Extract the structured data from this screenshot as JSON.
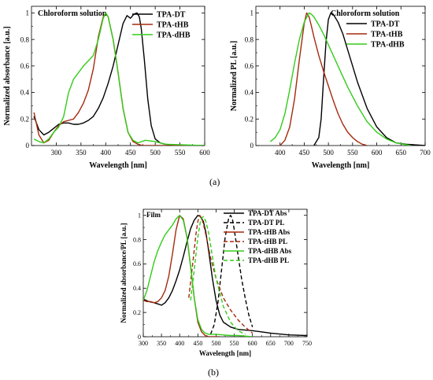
{
  "figure": {
    "caption_a": "(a)",
    "caption_b": "(b)"
  },
  "chart_data": [
    {
      "type": "line",
      "panel": "a-left",
      "title": "Chloroform solution",
      "xlabel": "Wavelength [nm]",
      "ylabel": "Normalized absorbance [a.u.]",
      "xlim": [
        250,
        600
      ],
      "ylim": [
        0,
        1.05
      ],
      "xticks": [
        300,
        350,
        400,
        450,
        500,
        550,
        600
      ],
      "yticks": [
        0.0,
        0.2,
        0.4,
        0.6,
        0.8,
        1.0
      ],
      "grid": false,
      "legend_position": "top-right",
      "series": [
        {
          "name": "TPA-DT",
          "color": "#000000",
          "dash": "solid",
          "x": [
            255,
            265,
            275,
            285,
            295,
            305,
            315,
            325,
            335,
            345,
            355,
            365,
            375,
            385,
            395,
            405,
            415,
            425,
            435,
            443,
            450,
            457,
            463,
            468,
            472,
            478,
            485,
            492,
            500,
            510,
            520,
            540,
            600
          ],
          "y": [
            0.22,
            0.12,
            0.08,
            0.1,
            0.13,
            0.16,
            0.17,
            0.17,
            0.16,
            0.16,
            0.17,
            0.19,
            0.22,
            0.28,
            0.36,
            0.47,
            0.6,
            0.76,
            0.92,
            0.98,
            0.96,
            0.99,
            1.0,
            0.97,
            0.88,
            0.65,
            0.35,
            0.15,
            0.05,
            0.02,
            0.01,
            0.0,
            0.0
          ]
        },
        {
          "name": "TPA-tHB",
          "color": "#a52a0f",
          "dash": "solid",
          "x": [
            255,
            265,
            275,
            285,
            295,
            305,
            315,
            325,
            335,
            345,
            355,
            365,
            375,
            385,
            395,
            400,
            405,
            415,
            425,
            435,
            445,
            455,
            465,
            475,
            490,
            520,
            600
          ],
          "y": [
            0.25,
            0.08,
            0.02,
            0.04,
            0.1,
            0.15,
            0.18,
            0.19,
            0.2,
            0.25,
            0.32,
            0.42,
            0.58,
            0.82,
            0.97,
            1.0,
            0.97,
            0.8,
            0.55,
            0.28,
            0.1,
            0.03,
            0.01,
            0.0,
            0.0,
            0.0,
            0.0
          ]
        },
        {
          "name": "TPA-dHB",
          "color": "#33cc1a",
          "dash": "solid",
          "x": [
            255,
            265,
            275,
            285,
            295,
            305,
            315,
            325,
            335,
            345,
            355,
            365,
            375,
            385,
            395,
            400,
            405,
            415,
            425,
            435,
            445,
            455,
            465,
            480,
            500,
            520,
            600
          ],
          "y": [
            0.05,
            0.03,
            0.02,
            0.05,
            0.1,
            0.14,
            0.22,
            0.4,
            0.5,
            0.55,
            0.6,
            0.64,
            0.68,
            0.8,
            0.96,
            1.0,
            0.97,
            0.8,
            0.55,
            0.28,
            0.1,
            0.04,
            0.02,
            0.04,
            0.03,
            0.01,
            0.0
          ]
        }
      ]
    },
    {
      "type": "line",
      "panel": "a-right",
      "title": "Chloroform solution",
      "xlabel": "Wavelength [nm]",
      "ylabel": "Normalized PL [a.u.]",
      "xlim": [
        350,
        700
      ],
      "ylim": [
        0,
        1.05
      ],
      "xticks": [
        400,
        450,
        500,
        550,
        600,
        650,
        700
      ],
      "yticks": [
        0.0,
        0.2,
        0.4,
        0.6,
        0.8,
        1.0
      ],
      "grid": false,
      "legend_position": "top-right",
      "series": [
        {
          "name": "TPA-DT",
          "color": "#000000",
          "dash": "solid",
          "x": [
            470,
            480,
            485,
            490,
            495,
            500,
            505,
            510,
            520,
            530,
            540,
            550,
            560,
            580,
            600,
            620,
            640,
            660,
            700
          ],
          "y": [
            0.0,
            0.06,
            0.2,
            0.5,
            0.78,
            0.95,
            1.0,
            0.99,
            0.93,
            0.84,
            0.72,
            0.6,
            0.48,
            0.28,
            0.14,
            0.06,
            0.02,
            0.01,
            0.0
          ]
        },
        {
          "name": "TPA-tHB",
          "color": "#a52a0f",
          "dash": "solid",
          "x": [
            400,
            410,
            420,
            430,
            440,
            450,
            455,
            460,
            465,
            470,
            480,
            490,
            500,
            510,
            520,
            530,
            540,
            550,
            560,
            570,
            580
          ],
          "y": [
            0.0,
            0.04,
            0.14,
            0.35,
            0.65,
            0.92,
            1.0,
            0.97,
            0.9,
            0.82,
            0.68,
            0.56,
            0.45,
            0.34,
            0.24,
            0.16,
            0.1,
            0.06,
            0.03,
            0.01,
            0.0
          ]
        },
        {
          "name": "TPA-dHB",
          "color": "#33cc1a",
          "dash": "solid",
          "x": [
            380,
            390,
            400,
            410,
            420,
            430,
            440,
            450,
            460,
            465,
            470,
            480,
            490,
            500,
            520,
            540,
            560,
            580,
            600,
            620,
            640,
            670
          ],
          "y": [
            0.03,
            0.06,
            0.12,
            0.24,
            0.42,
            0.62,
            0.8,
            0.93,
            1.0,
            0.99,
            0.97,
            0.91,
            0.84,
            0.76,
            0.6,
            0.44,
            0.3,
            0.18,
            0.1,
            0.05,
            0.02,
            0.0
          ]
        }
      ]
    },
    {
      "type": "line",
      "panel": "b",
      "title": "Film",
      "xlabel": "Wavelength [nm]",
      "ylabel": "Normalized absorbance/PL [a.u.]",
      "xlim": [
        300,
        750
      ],
      "ylim": [
        0,
        1.05
      ],
      "xticks": [
        300,
        350,
        400,
        450,
        500,
        550,
        600,
        650,
        700,
        750
      ],
      "yticks": [
        0.0,
        0.2,
        0.4,
        0.6,
        0.8,
        1.0
      ],
      "grid": false,
      "legend_position": "top-right",
      "series": [
        {
          "name": "TPA-DT Abs",
          "color": "#000000",
          "dash": "solid",
          "x": [
            300,
            315,
            330,
            340,
            350,
            360,
            370,
            380,
            390,
            400,
            410,
            420,
            430,
            440,
            450,
            457,
            465,
            472,
            480,
            490,
            500,
            510,
            520,
            540,
            560,
            600,
            650,
            700,
            750
          ],
          "y": [
            0.31,
            0.29,
            0.28,
            0.27,
            0.26,
            0.28,
            0.32,
            0.38,
            0.46,
            0.55,
            0.66,
            0.78,
            0.89,
            0.96,
            1.0,
            0.99,
            0.95,
            0.86,
            0.7,
            0.48,
            0.3,
            0.18,
            0.12,
            0.08,
            0.06,
            0.05,
            0.03,
            0.015,
            0.01
          ]
        },
        {
          "name": "TPA-DT PL",
          "color": "#000000",
          "dash": "dashed",
          "x": [
            485,
            495,
            505,
            515,
            525,
            535,
            540,
            545,
            550,
            560,
            570,
            580,
            590,
            600
          ],
          "y": [
            0.02,
            0.1,
            0.28,
            0.55,
            0.82,
            0.98,
            1.0,
            0.97,
            0.88,
            0.68,
            0.48,
            0.32,
            0.18,
            0.08
          ]
        },
        {
          "name": "TPA-tHB Abs",
          "color": "#a52a0f",
          "dash": "solid",
          "x": [
            300,
            310,
            320,
            330,
            340,
            350,
            360,
            370,
            380,
            390,
            400,
            410,
            420,
            430,
            440,
            450,
            460,
            470,
            480,
            490,
            510
          ],
          "y": [
            0.3,
            0.29,
            0.29,
            0.28,
            0.29,
            0.32,
            0.38,
            0.5,
            0.68,
            0.88,
            1.0,
            0.97,
            0.82,
            0.58,
            0.32,
            0.12,
            0.04,
            0.01,
            0.0,
            0.0,
            0.0
          ]
        },
        {
          "name": "TPA-tHB PL",
          "color": "#a52a0f",
          "dash": "dashed",
          "x": [
            425,
            435,
            445,
            450,
            455,
            460,
            465,
            475,
            485,
            500,
            520,
            540,
            560,
            580,
            600
          ],
          "y": [
            0.32,
            0.58,
            0.85,
            0.95,
            1.0,
            0.98,
            0.93,
            0.8,
            0.65,
            0.48,
            0.32,
            0.22,
            0.14,
            0.08,
            0.03
          ]
        },
        {
          "name": "TPA-dHB Abs",
          "color": "#33cc1a",
          "dash": "solid",
          "x": [
            300,
            310,
            320,
            330,
            340,
            350,
            360,
            370,
            380,
            390,
            400,
            410,
            420,
            430,
            440,
            450,
            460,
            470,
            480,
            490,
            500,
            520,
            540,
            560,
            580,
            600
          ],
          "y": [
            0.3,
            0.38,
            0.5,
            0.62,
            0.71,
            0.78,
            0.84,
            0.88,
            0.92,
            0.97,
            1.0,
            0.96,
            0.82,
            0.58,
            0.32,
            0.14,
            0.06,
            0.03,
            0.02,
            0.02,
            0.02,
            0.015,
            0.01,
            0.01,
            0.005,
            0.0
          ]
        },
        {
          "name": "TPA-dHB PL",
          "color": "#33cc1a",
          "dash": "dashed",
          "x": [
            430,
            440,
            450,
            458,
            465,
            472,
            480,
            490,
            500,
            520,
            540,
            560,
            580
          ],
          "y": [
            0.3,
            0.55,
            0.82,
            0.97,
            0.99,
            0.95,
            0.85,
            0.66,
            0.48,
            0.25,
            0.12,
            0.05,
            0.02
          ]
        }
      ]
    }
  ]
}
